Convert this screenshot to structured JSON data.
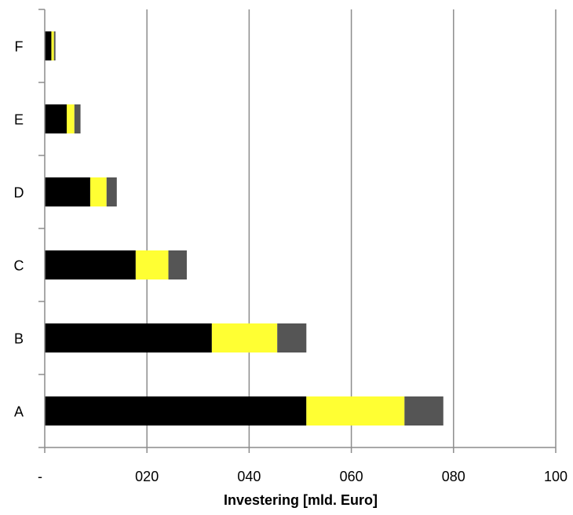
{
  "chart_data": {
    "type": "bar",
    "orientation": "horizontal",
    "stacked": true,
    "title": "",
    "xlabel": "Investering [mld. Euro]",
    "ylabel": "",
    "xlim": [
      0,
      100
    ],
    "x_ticks": [
      0,
      20,
      40,
      60,
      80,
      100
    ],
    "x_tick_labels": [
      "-",
      "020",
      "040",
      "060",
      "080",
      "100"
    ],
    "grid": "vertical",
    "legend": "none",
    "categories": [
      "A",
      "B",
      "C",
      "D",
      "E",
      "F"
    ],
    "series": [
      {
        "values": [
          51.2,
          32.7,
          17.8,
          8.9,
          4.3,
          1.3
        ],
        "color": "#000000"
      },
      {
        "values": [
          19.2,
          12.8,
          6.4,
          3.2,
          1.5,
          0.5
        ],
        "color": "#ffff33"
      },
      {
        "values": [
          7.6,
          5.7,
          3.6,
          2.0,
          1.2,
          0.3
        ],
        "color": "#555555"
      }
    ]
  }
}
